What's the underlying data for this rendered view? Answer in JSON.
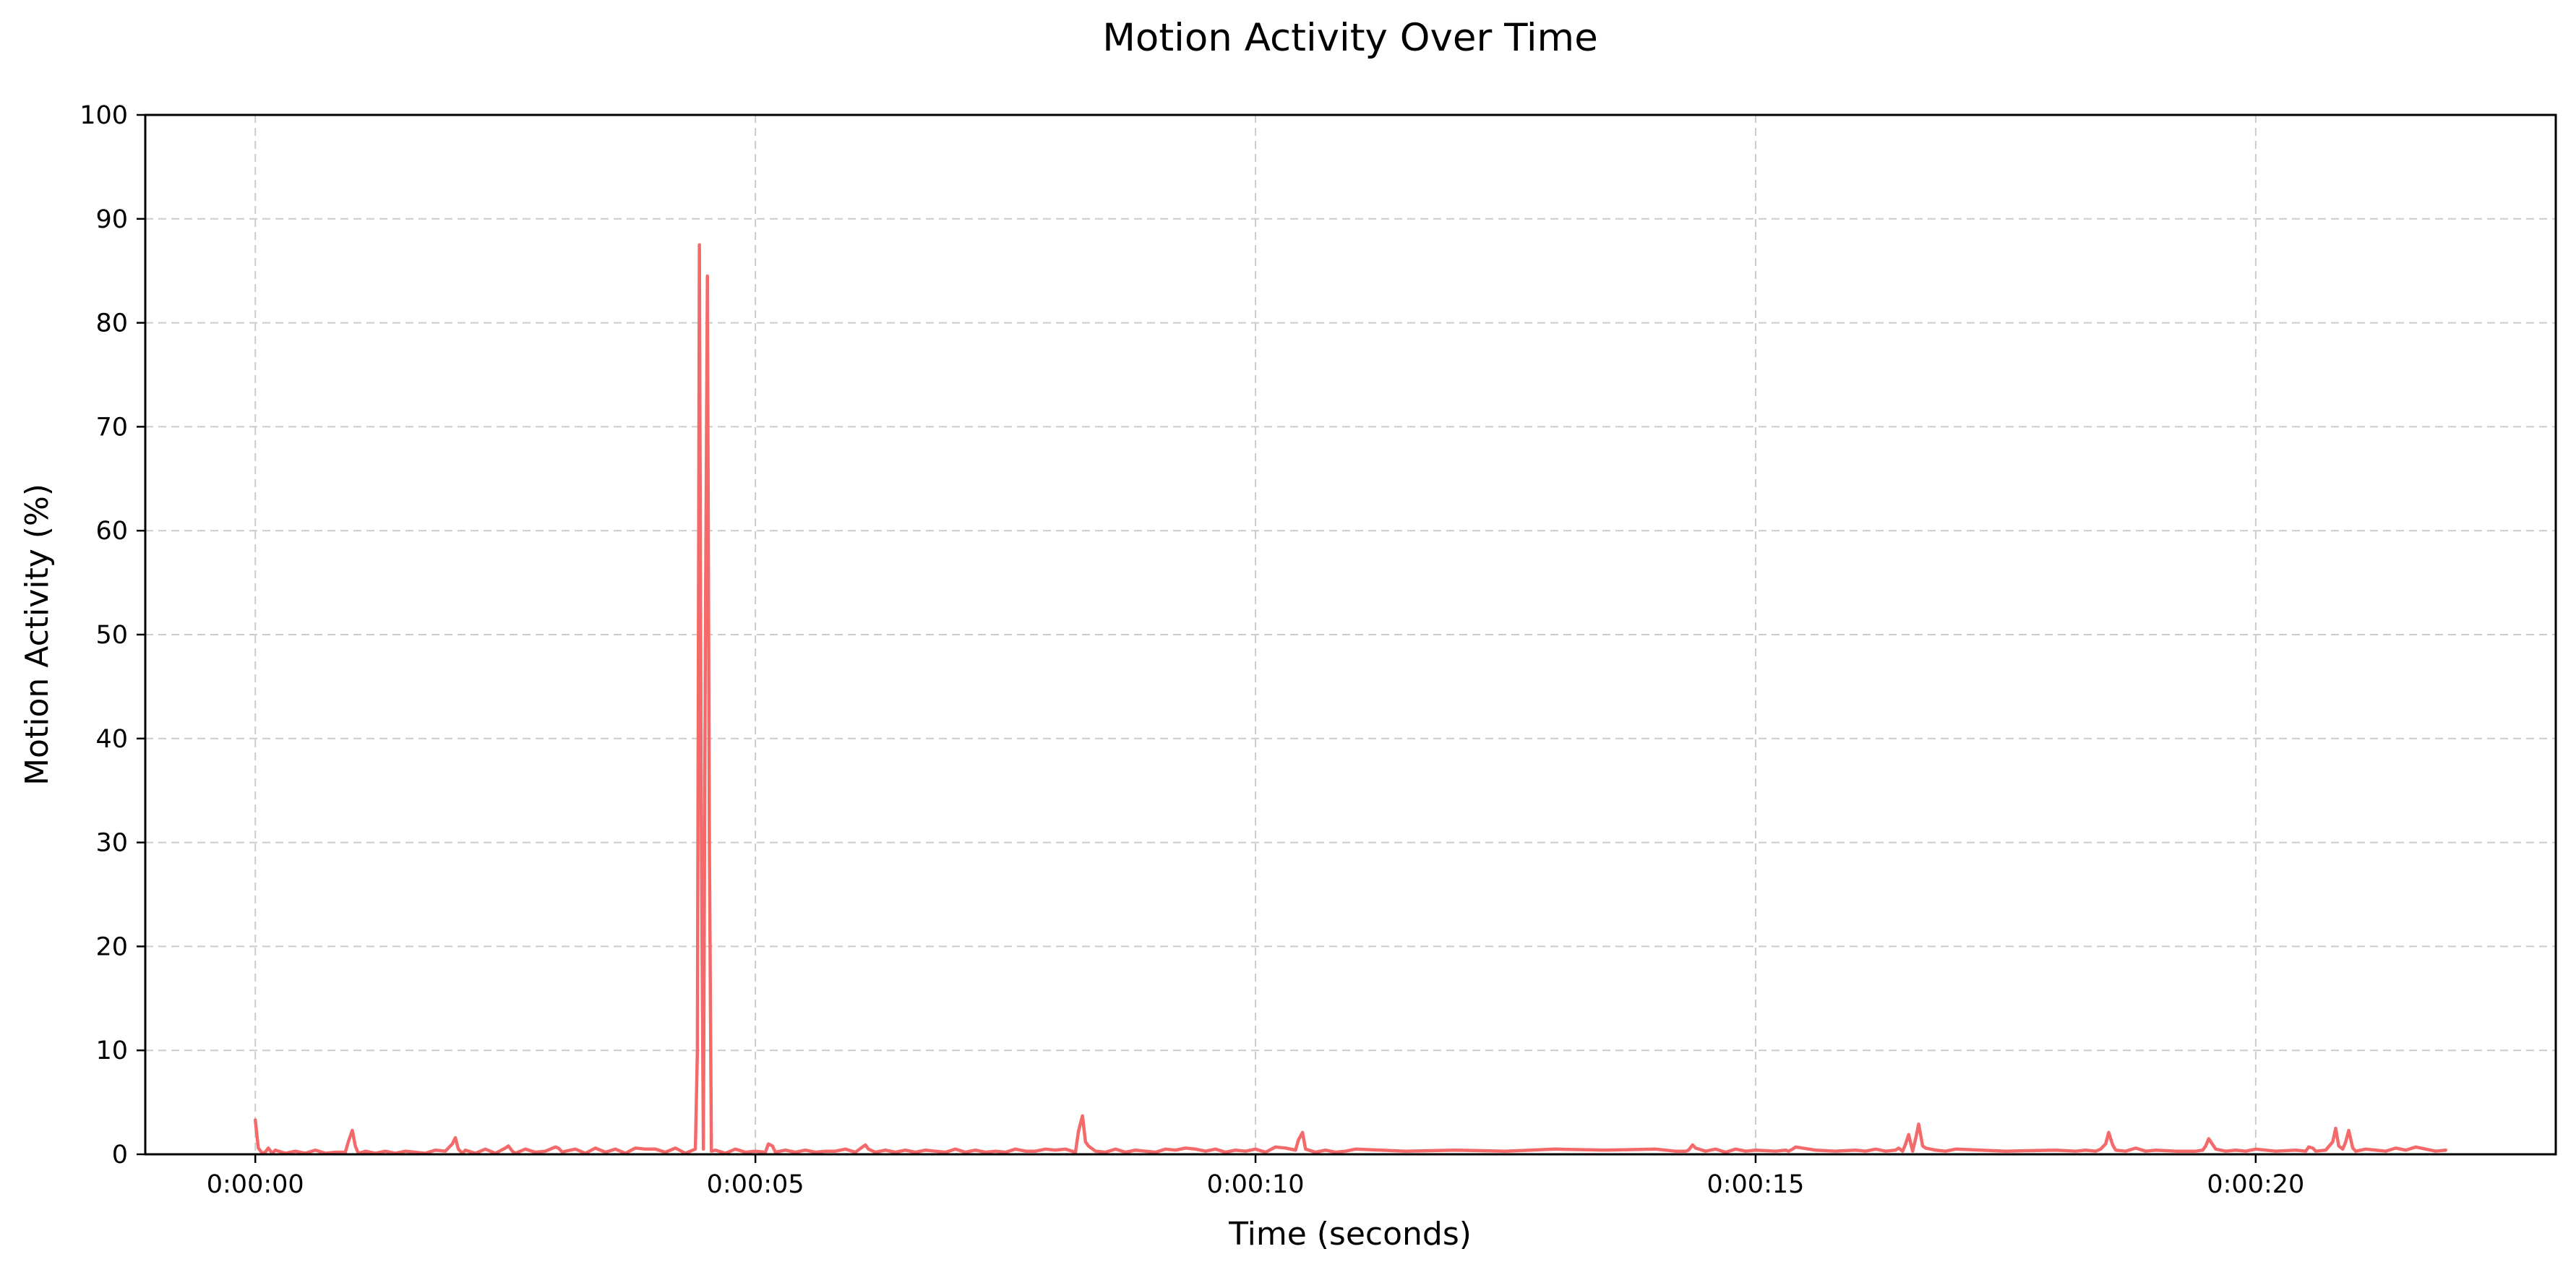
{
  "chart_data": {
    "type": "line",
    "title": "Motion Activity Over Time",
    "xlabel": "Time (seconds)",
    "ylabel": "Motion Activity (%)",
    "xlim": [
      -1.1,
      23.0
    ],
    "ylim": [
      0,
      100
    ],
    "xticks": [
      0,
      5,
      10,
      15,
      20
    ],
    "xtick_labels": [
      "0:00:00",
      "0:00:05",
      "0:00:10",
      "0:00:15",
      "0:00:20"
    ],
    "yticks": [
      0,
      10,
      20,
      30,
      40,
      50,
      60,
      70,
      80,
      90,
      100
    ],
    "ytick_labels": [
      "0",
      "10",
      "20",
      "30",
      "40",
      "50",
      "60",
      "70",
      "80",
      "90",
      "100"
    ],
    "grid": true,
    "series": [
      {
        "color": "#f46a6a",
        "x": [
          0.0,
          0.03,
          0.07,
          0.1,
          0.13,
          0.17,
          0.2,
          0.3,
          0.4,
          0.5,
          0.6,
          0.7,
          0.8,
          0.9,
          0.93,
          0.97,
          1.0,
          1.03,
          1.07,
          1.1,
          1.2,
          1.3,
          1.4,
          1.5,
          1.6,
          1.7,
          1.8,
          1.9,
          1.97,
          2.0,
          2.03,
          2.07,
          2.1,
          2.2,
          2.3,
          2.4,
          2.5,
          2.53,
          2.57,
          2.6,
          2.7,
          2.8,
          2.9,
          3.0,
          3.03,
          3.07,
          3.1,
          3.2,
          3.3,
          3.4,
          3.5,
          3.6,
          3.7,
          3.8,
          3.9,
          4.0,
          4.1,
          4.2,
          4.3,
          4.4,
          4.42,
          4.44,
          4.46,
          4.48,
          4.5,
          4.52,
          4.54,
          4.56,
          4.6,
          4.7,
          4.8,
          4.9,
          5.0,
          5.1,
          5.13,
          5.17,
          5.2,
          5.3,
          5.4,
          5.5,
          5.6,
          5.7,
          5.8,
          5.9,
          6.0,
          6.07,
          6.1,
          6.13,
          6.2,
          6.3,
          6.4,
          6.5,
          6.6,
          6.7,
          6.8,
          6.9,
          7.0,
          7.1,
          7.2,
          7.3,
          7.4,
          7.5,
          7.6,
          7.7,
          7.8,
          7.9,
          8.0,
          8.1,
          8.2,
          8.23,
          8.27,
          8.3,
          8.33,
          8.4,
          8.5,
          8.6,
          8.7,
          8.8,
          8.9,
          9.0,
          9.1,
          9.2,
          9.3,
          9.4,
          9.5,
          9.6,
          9.7,
          9.8,
          9.9,
          10.0,
          10.1,
          10.2,
          10.3,
          10.4,
          10.43,
          10.47,
          10.5,
          10.6,
          10.7,
          10.8,
          10.9,
          11.0,
          11.5,
          12.0,
          12.5,
          13.0,
          13.5,
          14.0,
          14.2,
          14.3,
          14.33,
          14.37,
          14.4,
          14.5,
          14.6,
          14.7,
          14.8,
          14.9,
          15.0,
          15.2,
          15.3,
          15.33,
          15.37,
          15.4,
          15.6,
          15.8,
          16.0,
          16.1,
          16.2,
          16.3,
          16.4,
          16.43,
          16.47,
          16.5,
          16.53,
          16.57,
          16.6,
          16.63,
          16.67,
          16.7,
          16.8,
          16.9,
          17.0,
          17.5,
          18.0,
          18.2,
          18.3,
          18.4,
          18.45,
          18.5,
          18.53,
          18.57,
          18.6,
          18.7,
          18.8,
          18.9,
          19.0,
          19.2,
          19.4,
          19.47,
          19.5,
          19.53,
          19.6,
          19.7,
          19.8,
          19.9,
          20.0,
          20.2,
          20.4,
          20.5,
          20.53,
          20.57,
          20.6,
          20.7,
          20.77,
          20.8,
          20.83,
          20.87,
          20.9,
          20.93,
          20.97,
          21.0,
          21.1,
          21.2,
          21.3,
          21.4,
          21.5,
          21.6,
          21.7,
          21.8,
          21.9
        ],
        "y": [
          3.3,
          0.6,
          0.1,
          0.2,
          0.6,
          0.1,
          0.4,
          0.1,
          0.3,
          0.1,
          0.4,
          0.1,
          0.2,
          0.2,
          1.2,
          2.3,
          0.8,
          0.1,
          0.2,
          0.3,
          0.1,
          0.3,
          0.1,
          0.3,
          0.2,
          0.1,
          0.4,
          0.3,
          1.0,
          1.6,
          0.5,
          0.1,
          0.4,
          0.1,
          0.5,
          0.1,
          0.6,
          0.8,
          0.3,
          0.1,
          0.5,
          0.2,
          0.3,
          0.7,
          0.6,
          0.2,
          0.3,
          0.5,
          0.1,
          0.6,
          0.2,
          0.5,
          0.1,
          0.6,
          0.5,
          0.5,
          0.2,
          0.6,
          0.1,
          0.5,
          10.0,
          87.5,
          30.0,
          0.5,
          50.0,
          84.5,
          30.0,
          0.3,
          0.4,
          0.1,
          0.5,
          0.2,
          0.3,
          0.2,
          1.0,
          0.8,
          0.2,
          0.4,
          0.2,
          0.4,
          0.2,
          0.3,
          0.3,
          0.5,
          0.2,
          0.7,
          0.9,
          0.5,
          0.2,
          0.4,
          0.2,
          0.4,
          0.2,
          0.4,
          0.3,
          0.2,
          0.5,
          0.2,
          0.4,
          0.2,
          0.3,
          0.2,
          0.5,
          0.3,
          0.3,
          0.5,
          0.4,
          0.5,
          0.2,
          2.2,
          3.7,
          1.2,
          0.8,
          0.3,
          0.2,
          0.5,
          0.2,
          0.4,
          0.3,
          0.2,
          0.5,
          0.4,
          0.6,
          0.5,
          0.3,
          0.5,
          0.2,
          0.4,
          0.3,
          0.5,
          0.2,
          0.7,
          0.6,
          0.4,
          1.4,
          2.1,
          0.5,
          0.2,
          0.4,
          0.2,
          0.3,
          0.5,
          0.3,
          0.4,
          0.3,
          0.5,
          0.4,
          0.5,
          0.3,
          0.3,
          0.4,
          0.9,
          0.6,
          0.3,
          0.5,
          0.2,
          0.5,
          0.3,
          0.4,
          0.3,
          0.4,
          0.3,
          0.5,
          0.7,
          0.4,
          0.3,
          0.4,
          0.3,
          0.5,
          0.3,
          0.4,
          0.6,
          0.3,
          1.0,
          1.9,
          0.3,
          1.5,
          2.9,
          0.8,
          0.6,
          0.4,
          0.3,
          0.5,
          0.3,
          0.4,
          0.3,
          0.4,
          0.3,
          0.5,
          1.0,
          2.1,
          0.9,
          0.4,
          0.3,
          0.6,
          0.3,
          0.4,
          0.3,
          0.3,
          0.4,
          0.8,
          1.5,
          0.5,
          0.3,
          0.4,
          0.3,
          0.5,
          0.3,
          0.4,
          0.3,
          0.7,
          0.6,
          0.3,
          0.4,
          1.2,
          2.5,
          0.8,
          0.5,
          1.2,
          2.3,
          0.6,
          0.3,
          0.5,
          0.4,
          0.3,
          0.6,
          0.4,
          0.7,
          0.5,
          0.3,
          0.4
        ]
      }
    ]
  }
}
